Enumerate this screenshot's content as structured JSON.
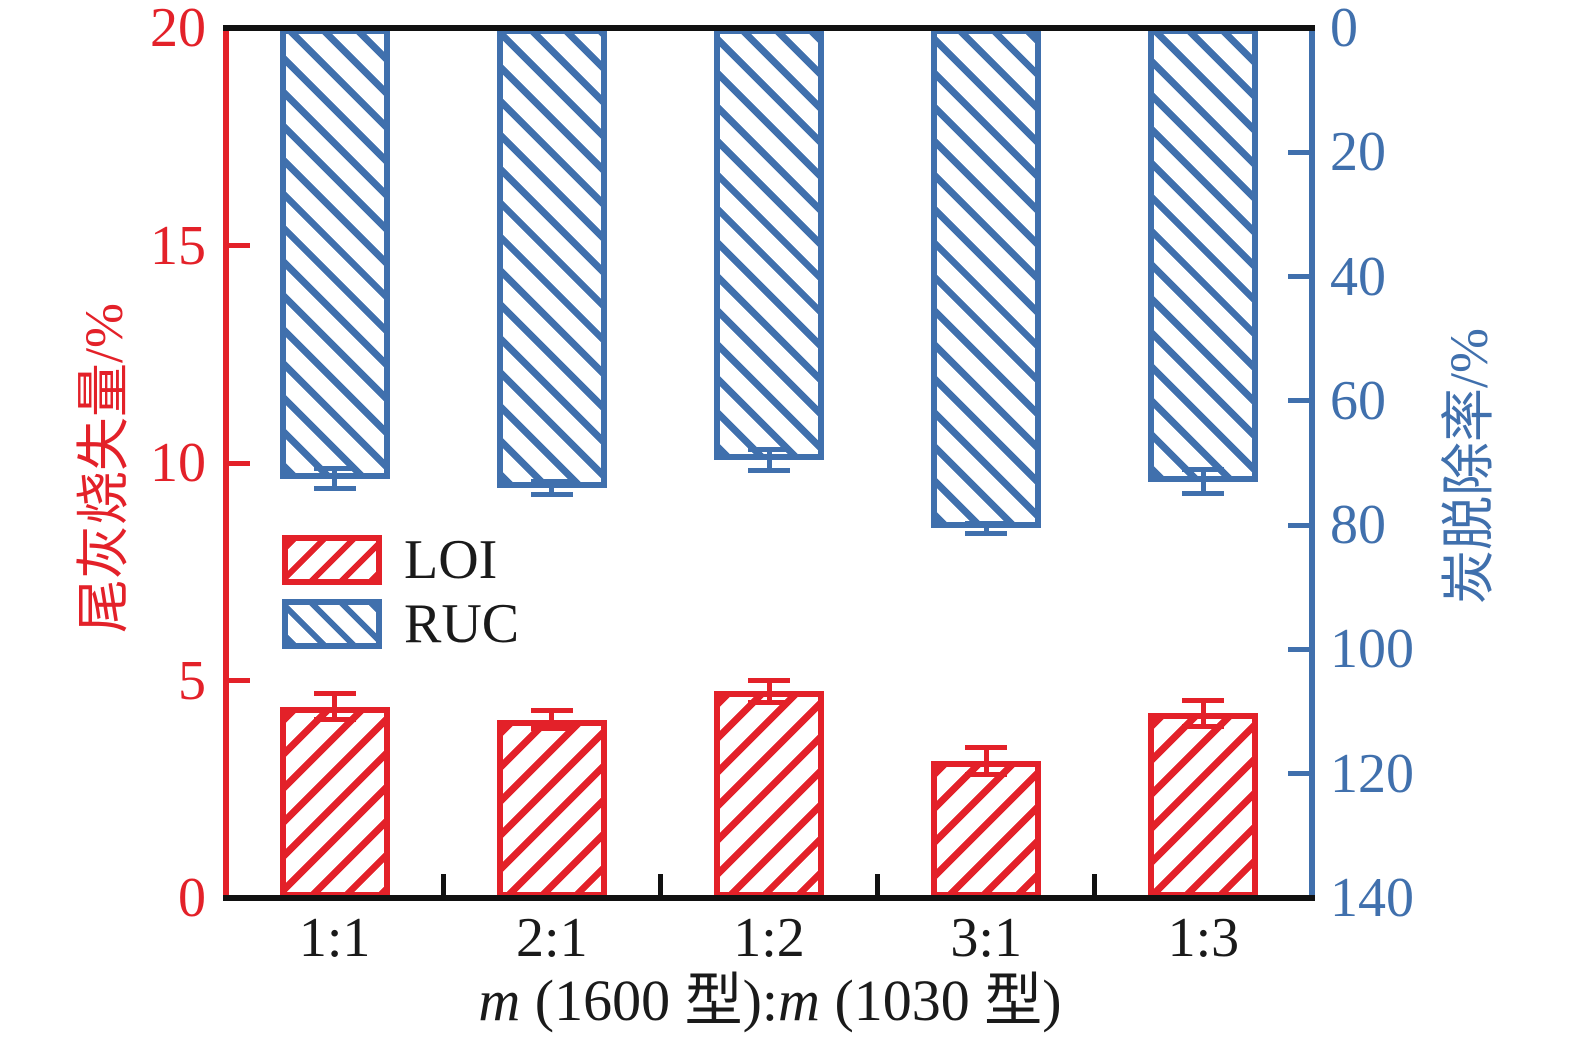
{
  "chart_data": {
    "type": "bar",
    "title": "",
    "categories": [
      "1:1",
      "2:1",
      "1:2",
      "3:1",
      "1:3"
    ],
    "xlabel": "m (1600 型):m (1030 型)",
    "xlabel_segments": [
      {
        "text": "m",
        "italic": true
      },
      {
        "text": " (1600 型):",
        "italic": false
      },
      {
        "text": "m",
        "italic": true
      },
      {
        "text": " (1030 型)",
        "italic": false
      }
    ],
    "left_axis": {
      "label": "尾灰烧失量/%",
      "min": 0,
      "max": 20,
      "ticks": [
        0,
        5,
        10,
        15,
        20
      ],
      "color": "#e32129",
      "inverted": false
    },
    "right_axis": {
      "label": "炭脱除率/%",
      "min": 0,
      "max": 140,
      "ticks": [
        0,
        20,
        40,
        60,
        80,
        100,
        120,
        140
      ],
      "color": "#4070ad",
      "inverted": true
    },
    "series": [
      {
        "name": "LOI",
        "axis": "left",
        "color": "#e32129",
        "hatch": "/",
        "values": [
          4.4,
          4.1,
          4.75,
          3.15,
          4.25
        ],
        "errors": [
          0.3,
          0.2,
          0.25,
          0.3,
          0.3
        ]
      },
      {
        "name": "RUC",
        "axis": "right",
        "color": "#4070ad",
        "hatch": "\\",
        "values": [
          72.5,
          74,
          69.5,
          80.5,
          73
        ],
        "errors": [
          1.6,
          1.1,
          1.7,
          0.8,
          1.9
        ]
      }
    ],
    "legend": {
      "items": [
        "LOI",
        "RUC"
      ],
      "position": "center-left"
    },
    "frame_colors": {
      "top": "#111111",
      "bottom": "#111111",
      "left": "#e32129",
      "right": "#4070ad"
    },
    "grid": false
  }
}
